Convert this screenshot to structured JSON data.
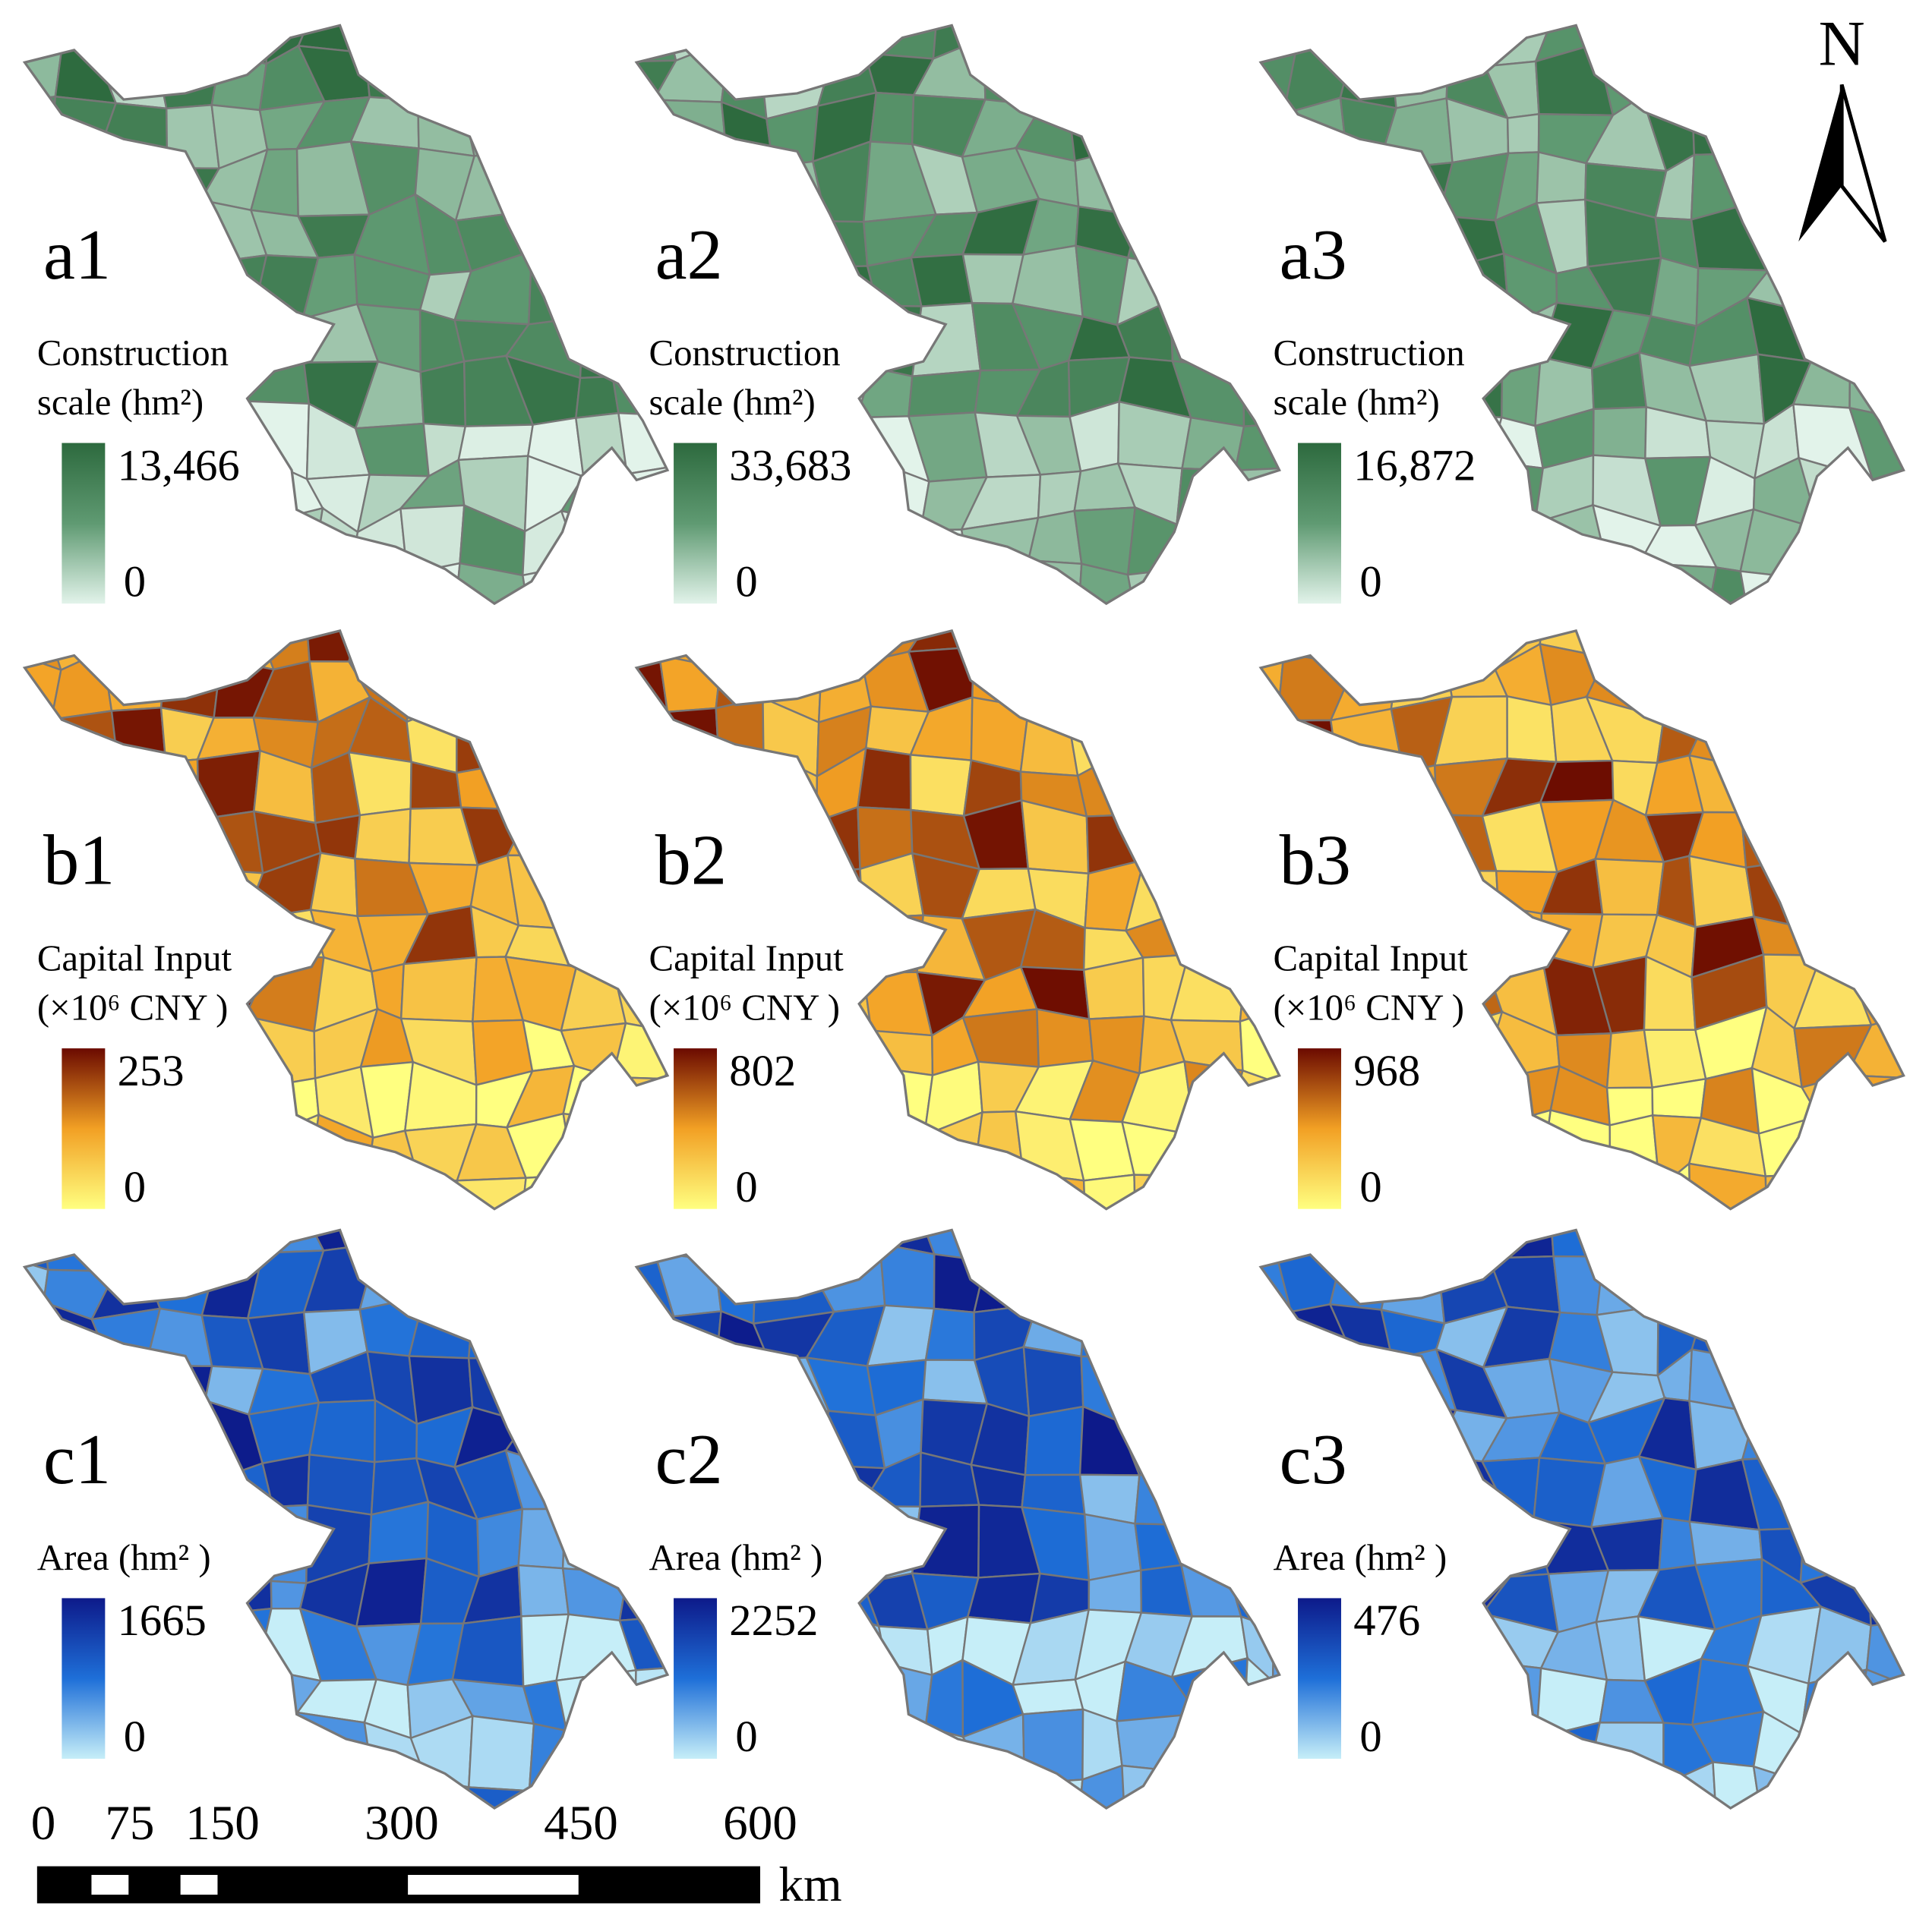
{
  "panels": [
    {
      "label": "a1",
      "legend_title": [
        "Construction",
        "scale (hm²)"
      ],
      "legend_max": "13,466",
      "legend_min": "0",
      "colors": [
        "#2d6a3e",
        "#5f9a72",
        "#e2f3ea"
      ]
    },
    {
      "label": "a2",
      "legend_title": [
        "Construction",
        "scale (hm²)"
      ],
      "legend_max": "33,683",
      "legend_min": "0",
      "colors": [
        "#2d6a3e",
        "#5f9a72",
        "#e2f3ea"
      ]
    },
    {
      "label": "a3",
      "legend_title": [
        "Construction",
        "scale (hm²)"
      ],
      "legend_max": "16,872",
      "legend_min": "0",
      "colors": [
        "#2d6a3e",
        "#5f9a72",
        "#e2f3ea"
      ]
    },
    {
      "label": "b1",
      "legend_title": [
        "Capital Input",
        "(×10⁶ CNY )"
      ],
      "legend_max": "253",
      "legend_min": "0",
      "colors": [
        "#6b0a00",
        "#f2a024",
        "#ffff80"
      ]
    },
    {
      "label": "b2",
      "legend_title": [
        "Capital Input",
        "(×10⁶ CNY )"
      ],
      "legend_max": "802",
      "legend_min": "0",
      "colors": [
        "#6b0a00",
        "#f2a024",
        "#ffff80"
      ]
    },
    {
      "label": "b3",
      "legend_title": [
        "Capital Input",
        "(×10⁶ CNY )"
      ],
      "legend_max": "968",
      "legend_min": "0",
      "colors": [
        "#6b0a00",
        "#f2a024",
        "#ffff80"
      ]
    },
    {
      "label": "c1",
      "legend_title": [
        "Area (hm² )"
      ],
      "legend_max": "1665",
      "legend_min": "0",
      "colors": [
        "#0d1a8a",
        "#1e6fd8",
        "#c6eef8"
      ]
    },
    {
      "label": "c2",
      "legend_title": [
        "Area (hm² )"
      ],
      "legend_max": "2252",
      "legend_min": "0",
      "colors": [
        "#0d1a8a",
        "#1e6fd8",
        "#c6eef8"
      ]
    },
    {
      "label": "c3",
      "legend_title": [
        "Area (hm² )"
      ],
      "legend_max": "476",
      "legend_min": "0",
      "colors": [
        "#0d1a8a",
        "#1e6fd8",
        "#c6eef8"
      ]
    }
  ],
  "north_arrow": {
    "label": "N"
  },
  "scale_bar": {
    "labels": [
      "0",
      "75",
      "150",
      "300",
      "450",
      "600"
    ],
    "unit": "km"
  }
}
